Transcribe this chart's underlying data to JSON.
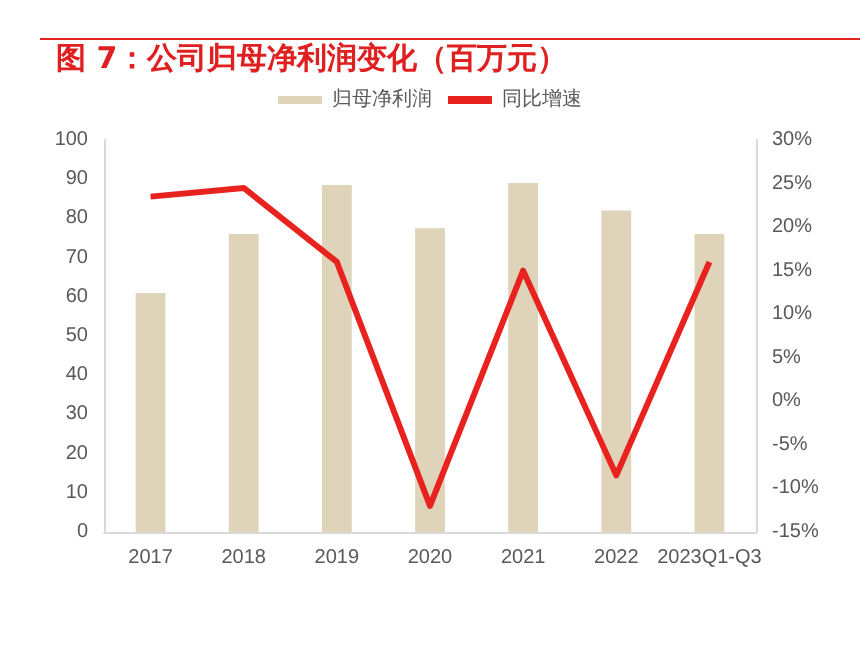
{
  "chart_data": {
    "type": "bar",
    "title": "图 7：公司归母净利润变化（百万元）",
    "categories": [
      "2017",
      "2018",
      "2019",
      "2020",
      "2021",
      "2022",
      "2023Q1-Q3"
    ],
    "series": [
      {
        "name": "归母净利润",
        "color": "#dfd3b9",
        "values": [
          61,
          76,
          88.5,
          77.5,
          89,
          82,
          76
        ]
      },
      {
        "name": "同比增速",
        "type": "line",
        "axis": "y2",
        "color": "#e8231f",
        "values": [
          23.5,
          24.5,
          16,
          -12,
          15,
          -8.5,
          16
        ]
      }
    ],
    "ylim": [
      0,
      100
    ],
    "yticks": [
      0,
      10,
      20,
      30,
      40,
      50,
      60,
      70,
      80,
      90,
      100
    ],
    "y2lim": [
      -15,
      30
    ],
    "y2ticks": [
      {
        "value": -15,
        "label": "-15%"
      },
      {
        "value": -10,
        "label": "-10%"
      },
      {
        "value": -5,
        "label": "-5%"
      },
      {
        "value": 0,
        "label": "0%"
      },
      {
        "value": 5,
        "label": "5%"
      },
      {
        "value": 10,
        "label": "10%"
      },
      {
        "value": 15,
        "label": "15%"
      },
      {
        "value": 20,
        "label": "20%"
      },
      {
        "value": 25,
        "label": "25%"
      },
      {
        "value": 30,
        "label": "30%"
      }
    ],
    "grid": false,
    "legend": "top",
    "marker": "none",
    "line_style": "solid"
  }
}
